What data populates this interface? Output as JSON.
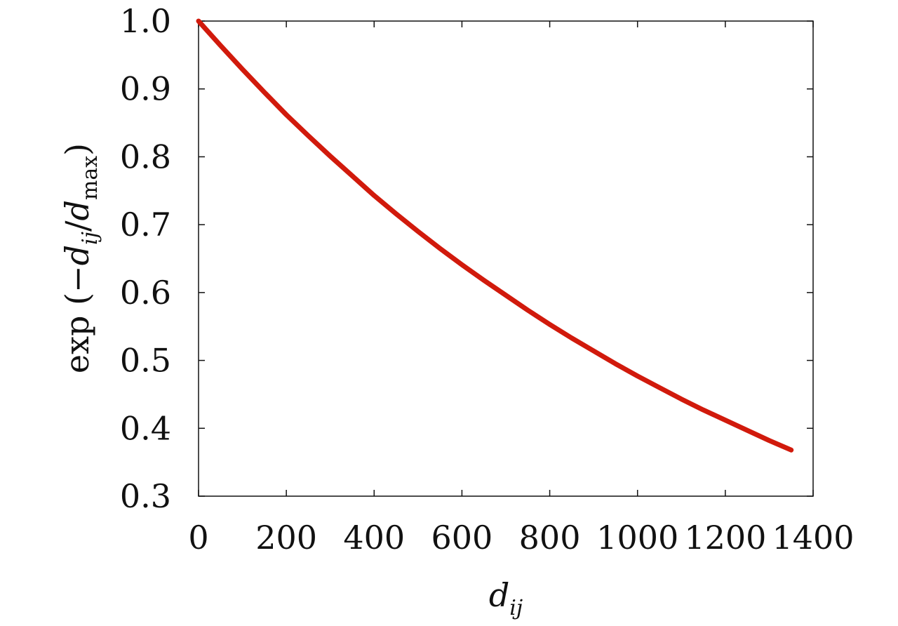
{
  "chart_data": {
    "type": "line",
    "xlabel": {
      "base": "d",
      "sub": "ij"
    },
    "ylabel": {
      "prefix": "exp (−",
      "num_base": "d",
      "num_sub": "ij",
      "slash": "/",
      "den_base": "d",
      "den_sub": "max",
      "suffix": ")"
    },
    "xlim": [
      0,
      1400
    ],
    "ylim": [
      0.3,
      1.0
    ],
    "x_ticks": [
      0,
      200,
      400,
      600,
      800,
      1000,
      1200,
      1400
    ],
    "x_tick_labels": [
      "0",
      "200",
      "400",
      "600",
      "800",
      "1000",
      "1200",
      "1400"
    ],
    "y_ticks": [
      0.3,
      0.4,
      0.5,
      0.6,
      0.7,
      0.8,
      0.9,
      1.0
    ],
    "y_tick_labels": [
      "0.3",
      "0.4",
      "0.5",
      "0.6",
      "0.7",
      "0.8",
      "0.9",
      "1.0"
    ],
    "grid": false,
    "legend": "none",
    "series": [
      {
        "color": "#d11a0c",
        "x": [
          0,
          50,
          100,
          150,
          200,
          250,
          300,
          350,
          400,
          450,
          500,
          550,
          600,
          650,
          700,
          750,
          800,
          850,
          900,
          950,
          1000,
          1050,
          1100,
          1150,
          1200,
          1250,
          1300,
          1350
        ],
        "y": [
          1.0,
          0.964,
          0.929,
          0.895,
          0.862,
          0.831,
          0.801,
          0.772,
          0.743,
          0.716,
          0.69,
          0.665,
          0.641,
          0.618,
          0.596,
          0.574,
          0.553,
          0.533,
          0.514,
          0.495,
          0.477,
          0.46,
          0.443,
          0.427,
          0.412,
          0.397,
          0.382,
          0.368
        ]
      }
    ]
  }
}
